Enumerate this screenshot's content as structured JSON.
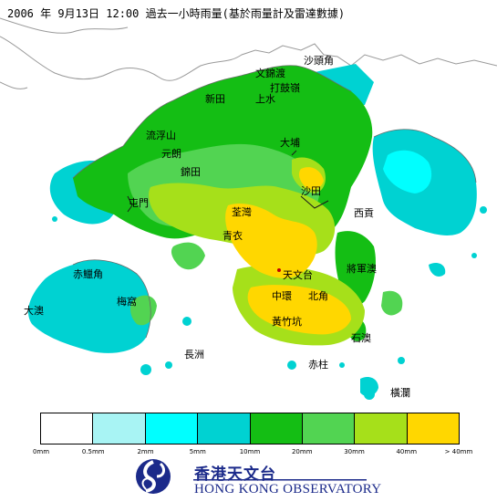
{
  "header": {
    "title": "2006 年  9月13日  12:00  過去一小時雨量(基於雨量計及雷達數據)"
  },
  "places": [
    {
      "id": "sha-tau-kok",
      "text": "沙頭角"
    },
    {
      "id": "man-kam-to",
      "text": "文錦渡"
    },
    {
      "id": "ta-kwu-ling",
      "text": "打鼓嶺"
    },
    {
      "id": "san-tin",
      "text": "新田"
    },
    {
      "id": "sheung-shui",
      "text": "上水"
    },
    {
      "id": "lau-fau-shan",
      "text": "流浮山"
    },
    {
      "id": "yuen-long",
      "text": "元朗"
    },
    {
      "id": "kam-tin",
      "text": "錦田"
    },
    {
      "id": "tai-po",
      "text": "大埔"
    },
    {
      "id": "sha-tin",
      "text": "沙田"
    },
    {
      "id": "sai-kung",
      "text": "西貢"
    },
    {
      "id": "tuen-mun",
      "text": "屯門"
    },
    {
      "id": "tsuen-wan",
      "text": "荃灣"
    },
    {
      "id": "tsing-yi",
      "text": "青衣"
    },
    {
      "id": "chek-lap-kok",
      "text": "赤鱲角"
    },
    {
      "id": "tai-o",
      "text": "大澳"
    },
    {
      "id": "tung-chung",
      "text": "梅窩"
    },
    {
      "id": "tseung-kwan-o",
      "text": "將軍澳"
    },
    {
      "id": "tsim-sha-tsui",
      "text": "天文台"
    },
    {
      "id": "central",
      "text": "中環"
    },
    {
      "id": "north-point",
      "text": "北角"
    },
    {
      "id": "wong-chuk-hang",
      "text": "黃竹坑"
    },
    {
      "id": "cheung-chau",
      "text": "長洲"
    },
    {
      "id": "stanley",
      "text": "赤柱"
    },
    {
      "id": "shek-o",
      "text": "石澳"
    },
    {
      "id": "waglan",
      "text": "橫瀾"
    }
  ],
  "legend": {
    "colors": [
      "#ffffff",
      "#a8f4f4",
      "#00ffff",
      "#00d2d2",
      "#14be14",
      "#52d452",
      "#a6e01a",
      "#ffd700"
    ],
    "ticks": [
      "0mm",
      "0.5mm",
      "2mm",
      "5mm",
      "10mm",
      "20mm",
      "30mm",
      "40mm",
      "> 40mm"
    ]
  },
  "logo": {
    "name_cn": "香港天文台",
    "name_en": "HONG KONG OBSERVATORY"
  }
}
